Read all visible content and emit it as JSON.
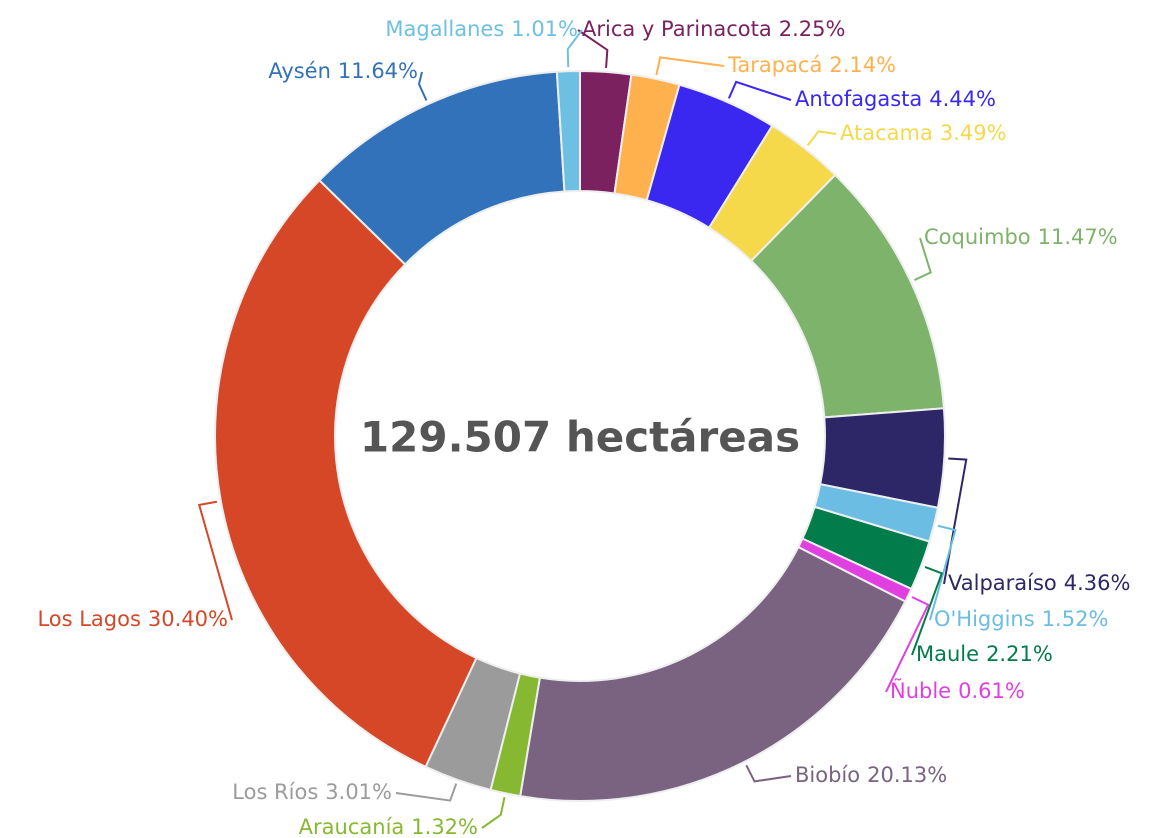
{
  "chart_data": {
    "type": "donut",
    "center_label": "129.507 hectáreas",
    "categories": [
      "Arica y Parinacota",
      "Tarapacá",
      "Antofagasta",
      "Atacama",
      "Coquimbo",
      "Valparaíso",
      "O'Higgins",
      "Maule",
      "Ñuble",
      "Biobío",
      "Araucanía",
      "Los Ríos",
      "Los Lagos",
      "Aysén",
      "Magallanes"
    ],
    "values": [
      2.25,
      2.14,
      4.44,
      3.49,
      11.47,
      4.36,
      1.52,
      2.21,
      0.61,
      20.13,
      1.32,
      3.01,
      30.4,
      11.64,
      1.01
    ],
    "value_labels": [
      "2.25%",
      "2.14%",
      "4.44%",
      "3.49%",
      "11.47%",
      "4.36%",
      "1.52%",
      "2.21%",
      "0.61%",
      "20.13%",
      "1.32%",
      "3.01%",
      "30.40%",
      "11.64%",
      "1.01%"
    ],
    "colors": [
      "#7b2160",
      "#ffb14e",
      "#3a28f0",
      "#f5d94a",
      "#7db36a",
      "#2e2767",
      "#6bbde3",
      "#027c4a",
      "#e040e0",
      "#7a6380",
      "#87b832",
      "#9b9b9b",
      "#d54727",
      "#3272bb",
      "#6ec0e3"
    ]
  }
}
